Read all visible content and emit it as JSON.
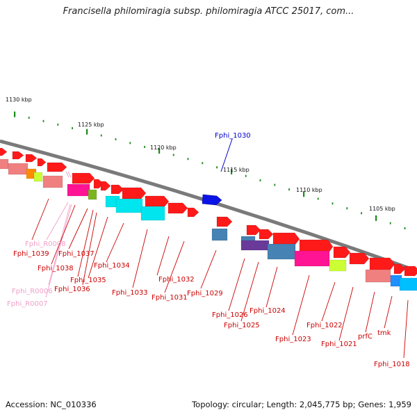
{
  "title": "Francisella philomiragia subsp. philomiragia ATCC 25017, com...",
  "footer": {
    "accession": "Accession: NC_010336",
    "summary": "Topology: circular; Length: 2,045,775 bp; Genes: 1,959"
  },
  "colors": {
    "highlight": "#0000cc",
    "gene_label": "#cc0000",
    "rna_label": "#f0a0c8",
    "backbone": "#808080",
    "ticks": "#118811"
  },
  "kbp_marks": [
    "1130 kbp",
    "1125 kbp",
    "1120 kbp",
    "1115 kbp",
    "1110 kbp",
    "1105 kbp"
  ],
  "gene_labels": [
    {
      "text": "Fphi_1030",
      "kind": "highlight"
    },
    {
      "text": "Fphi_R0008",
      "kind": "rna"
    },
    {
      "text": "Fphi_1039",
      "kind": "gene"
    },
    {
      "text": "Fphi_1037",
      "kind": "gene"
    },
    {
      "text": "Fphi_1038",
      "kind": "gene"
    },
    {
      "text": "Fphi_1035",
      "kind": "gene"
    },
    {
      "text": "Fphi_1036",
      "kind": "gene"
    },
    {
      "text": "Fphi_R0006",
      "kind": "rna"
    },
    {
      "text": "Fphi_R0007",
      "kind": "rna"
    },
    {
      "text": "Fphi_1034",
      "kind": "gene"
    },
    {
      "text": "Fphi_1033",
      "kind": "gene"
    },
    {
      "text": "Fphi_1032",
      "kind": "gene"
    },
    {
      "text": "Fphi_1031",
      "kind": "gene"
    },
    {
      "text": "Fphi_1029",
      "kind": "gene"
    },
    {
      "text": "Fphi_1026",
      "kind": "gene"
    },
    {
      "text": "Fphi_1025",
      "kind": "gene"
    },
    {
      "text": "Fphi_1024",
      "kind": "gene"
    },
    {
      "text": "Fphi_1023",
      "kind": "gene"
    },
    {
      "text": "Fphi_1022",
      "kind": "gene"
    },
    {
      "text": "Fphi_1021",
      "kind": "gene"
    },
    {
      "text": "prfC",
      "kind": "gene"
    },
    {
      "text": "tmk",
      "kind": "gene"
    },
    {
      "text": "Fphi_1018",
      "kind": "gene"
    }
  ]
}
